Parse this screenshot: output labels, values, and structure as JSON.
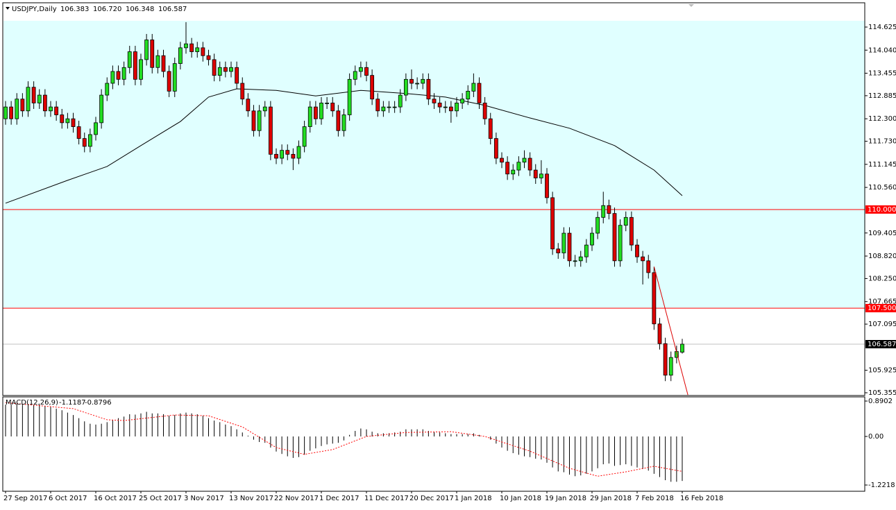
{
  "chart_data": [
    {
      "type": "candlestick",
      "title": "USDJPY,Daily",
      "value_labels": [
        "106.383",
        "106.720",
        "106.348",
        "106.587"
      ],
      "categories": [
        "27 Sep 2017",
        null,
        null,
        null,
        null,
        null,
        null,
        null,
        "6 Oct 2017",
        null,
        null,
        null,
        null,
        null,
        null,
        null,
        "16 Oct 2017",
        null,
        null,
        null,
        null,
        null,
        null,
        null,
        "25 Oct 2017",
        null,
        null,
        null,
        null,
        null,
        null,
        null,
        "3 Nov 2017",
        null,
        null,
        null,
        null,
        null,
        null,
        null,
        "13 Nov 2017",
        null,
        null,
        null,
        null,
        null,
        null,
        null,
        "22 Nov 2017",
        null,
        null,
        null,
        null,
        null,
        null,
        null,
        "1 Dec 2017",
        null,
        null,
        null,
        null,
        null,
        null,
        null,
        "11 Dec 2017",
        null,
        null,
        null,
        null,
        null,
        null,
        null,
        "20 Dec 2017",
        null,
        null,
        null,
        null,
        null,
        null,
        null,
        "1 Jan 2018",
        null,
        null,
        null,
        null,
        null,
        null,
        null,
        "10 Jan 2018",
        null,
        null,
        null,
        null,
        null,
        null,
        null,
        "19 Jan 2018",
        null,
        null,
        null,
        null,
        null,
        null,
        null,
        "29 Jan 2018",
        null,
        null,
        null,
        null,
        null,
        null,
        null,
        "7 Feb 2018",
        null,
        null,
        null,
        null,
        null,
        null,
        null,
        "16 Feb 2018"
      ],
      "open": [
        112.3,
        112.6,
        112.3,
        112.8,
        112.5,
        113.1,
        112.7,
        112.9,
        112.5,
        112.6,
        112.4,
        112.2,
        112.3,
        112.1,
        111.8,
        111.6,
        111.9,
        112.2,
        112.9,
        113.2,
        113.5,
        113.3,
        113.6,
        114.0,
        113.3,
        113.8,
        114.3,
        113.6,
        113.9,
        113.5,
        113.0,
        113.7,
        114.1,
        114.2,
        114.0,
        114.1,
        113.9,
        113.8,
        113.4,
        113.6,
        113.5,
        113.6,
        113.2,
        112.8,
        112.5,
        112.0,
        112.5,
        112.6,
        111.4,
        111.3,
        111.5,
        111.4,
        111.3,
        111.6,
        112.1,
        112.6,
        112.3,
        112.7,
        112.7,
        112.5,
        112.0,
        112.4,
        113.3,
        113.5,
        113.6,
        113.4,
        112.8,
        112.5,
        112.6,
        112.6,
        112.6,
        112.9,
        113.3,
        113.2,
        113.2,
        113.3,
        112.8,
        112.7,
        112.6,
        112.6,
        112.5,
        112.7,
        112.8,
        113.0,
        113.2,
        112.7,
        112.3,
        111.8,
        111.3,
        111.2,
        110.9,
        111.0,
        111.2,
        111.3,
        111.0,
        110.8,
        110.9,
        110.3,
        109.0,
        108.9,
        109.4,
        108.7,
        108.7,
        108.8,
        109.1,
        109.4,
        109.8,
        110.1,
        109.9,
        108.7,
        109.6,
        109.8,
        109.1,
        108.8,
        108.7,
        108.4,
        107.1,
        106.6,
        105.8,
        106.25,
        106.383
      ],
      "high": [
        112.75,
        112.75,
        112.95,
        112.95,
        113.25,
        113.25,
        113.05,
        113.05,
        112.75,
        112.75,
        112.55,
        112.45,
        112.45,
        112.25,
        111.95,
        112.05,
        112.35,
        113.05,
        113.35,
        113.65,
        113.65,
        113.75,
        114.15,
        114.15,
        113.95,
        114.45,
        114.45,
        114.05,
        114.05,
        113.65,
        113.85,
        114.25,
        114.75,
        114.35,
        114.25,
        114.25,
        114.05,
        113.95,
        113.75,
        113.75,
        113.75,
        113.75,
        113.35,
        112.95,
        112.65,
        112.65,
        112.75,
        112.75,
        111.55,
        111.65,
        111.65,
        111.55,
        111.75,
        112.25,
        112.75,
        112.75,
        112.85,
        112.85,
        112.85,
        112.65,
        112.55,
        113.45,
        113.65,
        113.75,
        113.75,
        113.55,
        112.95,
        112.75,
        112.75,
        112.75,
        113.05,
        113.45,
        113.55,
        113.35,
        113.45,
        113.45,
        112.95,
        112.85,
        112.75,
        112.75,
        112.85,
        112.95,
        113.15,
        113.45,
        113.35,
        112.85,
        112.45,
        111.95,
        111.45,
        111.35,
        111.15,
        111.35,
        111.5,
        111.45,
        111.15,
        111.25,
        111.05,
        110.45,
        109.15,
        109.55,
        109.55,
        108.85,
        108.95,
        109.25,
        109.55,
        109.95,
        110.45,
        110.25,
        110.05,
        109.75,
        109.95,
        109.95,
        109.25,
        108.95,
        108.85,
        108.55,
        107.25,
        106.75,
        106.4,
        106.55,
        106.72
      ],
      "low": [
        112.15,
        112.15,
        112.15,
        112.35,
        112.35,
        112.55,
        112.55,
        112.35,
        112.35,
        112.25,
        112.05,
        112.05,
        111.95,
        111.65,
        111.45,
        111.45,
        111.75,
        112.05,
        112.75,
        113.05,
        113.15,
        113.15,
        113.45,
        113.15,
        113.15,
        113.65,
        113.45,
        113.45,
        113.35,
        112.85,
        112.85,
        113.55,
        113.95,
        113.85,
        113.85,
        113.75,
        113.65,
        113.25,
        113.25,
        113.35,
        113.35,
        113.05,
        112.65,
        112.35,
        111.85,
        111.85,
        112.35,
        111.25,
        111.15,
        111.15,
        111.25,
        111.0,
        111.15,
        111.45,
        111.95,
        112.15,
        112.15,
        112.55,
        112.35,
        111.85,
        111.85,
        112.25,
        113.15,
        113.35,
        113.25,
        112.65,
        112.35,
        112.35,
        112.45,
        112.45,
        112.45,
        112.75,
        113.05,
        113.05,
        113.05,
        112.65,
        112.55,
        112.45,
        112.45,
        112.2,
        112.35,
        112.55,
        112.65,
        112.85,
        112.55,
        112.15,
        111.65,
        111.15,
        111.05,
        110.75,
        110.75,
        110.85,
        111.05,
        110.85,
        110.65,
        110.65,
        110.15,
        108.85,
        108.75,
        108.75,
        108.55,
        108.55,
        108.55,
        108.65,
        108.95,
        109.25,
        109.65,
        109.75,
        108.55,
        108.55,
        109.45,
        108.95,
        108.65,
        108.1,
        108.25,
        106.95,
        106.45,
        105.65,
        105.65,
        106.1,
        106.348
      ],
      "close": [
        112.6,
        112.3,
        112.8,
        112.5,
        113.1,
        112.7,
        112.9,
        112.5,
        112.6,
        112.4,
        112.2,
        112.3,
        112.1,
        111.8,
        111.6,
        111.9,
        112.2,
        112.9,
        113.2,
        113.5,
        113.3,
        113.6,
        114.0,
        113.3,
        113.8,
        114.3,
        113.6,
        113.9,
        113.5,
        113.0,
        113.7,
        114.1,
        114.2,
        114.0,
        114.1,
        113.9,
        113.8,
        113.4,
        113.6,
        113.5,
        113.6,
        113.2,
        112.8,
        112.5,
        112.0,
        112.5,
        112.6,
        111.4,
        111.3,
        111.5,
        111.4,
        111.3,
        111.6,
        112.1,
        112.6,
        112.3,
        112.7,
        112.7,
        112.5,
        112.0,
        112.4,
        113.3,
        113.5,
        113.6,
        113.4,
        112.8,
        112.5,
        112.6,
        112.6,
        112.6,
        112.9,
        113.3,
        113.2,
        113.2,
        113.3,
        112.8,
        112.7,
        112.6,
        112.6,
        112.5,
        112.7,
        112.8,
        113.0,
        113.2,
        112.7,
        112.3,
        111.8,
        111.3,
        111.2,
        110.9,
        111.0,
        111.2,
        111.3,
        111.0,
        110.8,
        110.9,
        110.3,
        109.0,
        108.9,
        109.4,
        108.7,
        108.7,
        108.8,
        109.1,
        109.4,
        109.8,
        110.1,
        109.9,
        108.7,
        109.6,
        109.8,
        109.1,
        108.8,
        108.7,
        108.4,
        107.1,
        106.6,
        105.8,
        106.25,
        106.4,
        106.587
      ],
      "bull_color": "#22dd22",
      "bear_color": "#dd0000",
      "ma": {
        "color": "#000000",
        "x": [
          0,
          11,
          18,
          24,
          31,
          36,
          41,
          48,
          55,
          63,
          71,
          78,
          85,
          93,
          100,
          108,
          115,
          120
        ],
        "values": [
          110.16,
          110.74,
          111.09,
          111.62,
          112.23,
          112.85,
          113.06,
          113.02,
          112.88,
          113.02,
          112.94,
          112.85,
          112.64,
          112.32,
          112.06,
          111.62,
          111.0,
          110.35
        ]
      },
      "trendline": {
        "color": "#dd0000",
        "x": [
          115,
          121
        ],
        "values": [
          108.55,
          105.3
        ]
      },
      "hlines": [
        {
          "value": 110,
          "label": "110.000",
          "color": "#ff0000"
        },
        {
          "value": 107.5,
          "label": "107.500",
          "color": "#ff0000"
        }
      ],
      "zone_color": "#e0ffff",
      "ylim": [
        105.285,
        115.223
      ],
      "yticks": [
        114.625,
        {
          "value": 114.04,
          "label": "114.040"
        },
        113.455,
        112.885,
        {
          "value": 112.3,
          "label": "112.300"
        },
        {
          "value": 111.73,
          "label": "111.730"
        },
        111.145,
        {
          "value": 110.56,
          "label": "110.560"
        },
        109.405,
        {
          "value": 108.82,
          "label": "108.820"
        },
        {
          "value": 108.25,
          "label": "108.250"
        },
        107.665,
        107.095,
        105.925,
        105.355
      ]
    },
    {
      "type": "macd",
      "title": "MACD(12,26,9)",
      "histogram": [
        0.8,
        0.8,
        0.82,
        0.8,
        0.82,
        0.8,
        0.8,
        0.76,
        0.74,
        0.7,
        0.66,
        0.6,
        0.54,
        0.46,
        0.38,
        0.32,
        0.3,
        0.32,
        0.36,
        0.42,
        0.46,
        0.5,
        0.56,
        0.55,
        0.58,
        0.62,
        0.58,
        0.58,
        0.56,
        0.52,
        0.54,
        0.58,
        0.6,
        0.58,
        0.56,
        0.52,
        0.46,
        0.4,
        0.36,
        0.3,
        0.26,
        0.18,
        0.1,
        0.02,
        -0.08,
        -0.14,
        -0.16,
        -0.28,
        -0.38,
        -0.44,
        -0.5,
        -0.54,
        -0.52,
        -0.46,
        -0.36,
        -0.3,
        -0.24,
        -0.2,
        -0.18,
        -0.16,
        -0.1,
        0.04,
        0.14,
        0.2,
        0.18,
        0.12,
        0.08,
        0.08,
        0.08,
        0.1,
        0.12,
        0.18,
        0.18,
        0.18,
        0.18,
        0.14,
        0.12,
        0.1,
        0.08,
        0.06,
        0.06,
        0.06,
        0.06,
        0.08,
        0.04,
        0.0,
        -0.08,
        -0.18,
        -0.28,
        -0.36,
        -0.42,
        -0.46,
        -0.5,
        -0.52,
        -0.56,
        -0.58,
        -0.66,
        -0.78,
        -0.88,
        -0.9,
        -0.96,
        -1.0,
        -0.98,
        -0.94,
        -0.88,
        -0.8,
        -0.7,
        -0.68,
        -0.74,
        -0.72,
        -0.7,
        -0.74,
        -0.78,
        -0.82,
        -0.86,
        -0.94,
        -1.02,
        -1.1,
        -1.14,
        -1.14,
        -1.1187
      ],
      "histogram_color": "#000000",
      "signal": {
        "color": "#ff0000",
        "x": [
          0,
          12,
          18,
          21,
          30,
          36,
          42,
          48,
          53,
          58,
          64,
          71,
          79,
          85,
          93,
          100,
          105,
          110,
          115,
          120
        ],
        "values": [
          0.85,
          0.7,
          0.42,
          0.4,
          0.54,
          0.52,
          0.24,
          -0.28,
          -0.45,
          -0.33,
          0.0,
          0.1,
          0.12,
          0.0,
          -0.37,
          -0.8,
          -1.0,
          -0.89,
          -0.75,
          -0.8796
        ]
      },
      "ylim": [
        -1.3614,
        0.995
      ],
      "yticks": [
        0.8902,
        {
          "value": 0,
          "label": "0.00"
        },
        -1.2218
      ]
    }
  ]
}
